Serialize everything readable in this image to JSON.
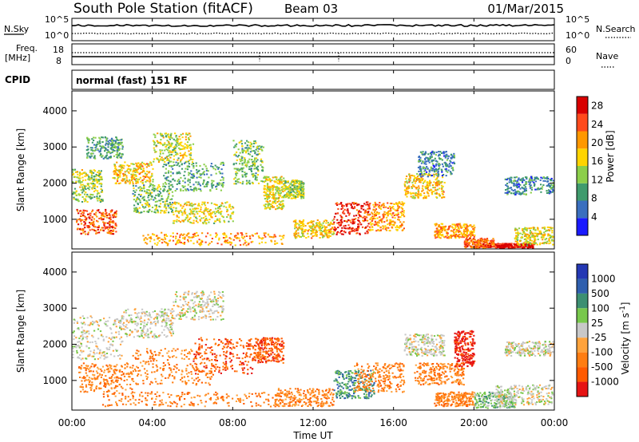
{
  "header": {
    "title": "South Pole Station (fitACF)",
    "beam": "Beam 03",
    "date": "01/Mar/2015"
  },
  "summary_panel": {
    "nsky_label": "N.Sky",
    "nsearch_label": "N.Search",
    "noise_ticks": [
      "10^5",
      "10^0"
    ],
    "freq_label_1": "Freq.",
    "freq_label_2": "[MHz]",
    "freq_ticks": [
      "18",
      "8"
    ],
    "nave_label": "Nave",
    "nave_ticks": [
      "60",
      "0"
    ],
    "cpid_label": "CPID",
    "cpid_text": "normal (fast) 151 RF"
  },
  "x_axis": {
    "label": "Time UT",
    "ticks": [
      "00:00",
      "04:00",
      "08:00",
      "12:00",
      "16:00",
      "20:00",
      "00:00"
    ]
  },
  "chart_data": [
    {
      "type": "heatmap",
      "name": "power",
      "ylabel": "Slant Range [km]",
      "yticks": [
        1000,
        2000,
        3000,
        4000
      ],
      "ylim": [
        180,
        4550
      ],
      "xlim_hours": [
        0,
        24
      ],
      "colorbar_label": "Power [dB]",
      "colorbar_ticks": [
        4,
        8,
        12,
        16,
        20,
        24,
        28
      ],
      "colorbar_range": [
        0,
        30
      ],
      "colors": [
        "#1a1aff",
        "#3a6fbf",
        "#3f9b6d",
        "#8ccf4a",
        "#ffd400",
        "#ff9800",
        "#ff4a1c",
        "#d80000"
      ],
      "regions": [
        {
          "t": [
            0.0,
            1.5
          ],
          "r": [
            1500,
            2400
          ],
          "v": 14
        },
        {
          "t": [
            0.7,
            2.5
          ],
          "r": [
            2700,
            3300
          ],
          "v": 10
        },
        {
          "t": [
            0.2,
            2.2
          ],
          "r": [
            600,
            1300
          ],
          "v": 24
        },
        {
          "t": [
            2.0,
            4.0
          ],
          "r": [
            2000,
            2600
          ],
          "v": 18
        },
        {
          "t": [
            3.0,
            5.0
          ],
          "r": [
            1200,
            2000
          ],
          "v": 12
        },
        {
          "t": [
            4.0,
            6.0
          ],
          "r": [
            2600,
            3400
          ],
          "v": 15
        },
        {
          "t": [
            4.5,
            7.5
          ],
          "r": [
            1800,
            2600
          ],
          "v": 10
        },
        {
          "t": [
            5.0,
            8.0
          ],
          "r": [
            900,
            1500
          ],
          "v": 16
        },
        {
          "t": [
            3.5,
            10.5
          ],
          "r": [
            300,
            650
          ],
          "v": 20
        },
        {
          "t": [
            8.0,
            9.5
          ],
          "r": [
            2000,
            3200
          ],
          "v": 12
        },
        {
          "t": [
            9.5,
            10.5
          ],
          "r": [
            1300,
            2200
          ],
          "v": 16
        },
        {
          "t": [
            10.5,
            11.5
          ],
          "r": [
            1600,
            2100
          ],
          "v": 14
        },
        {
          "t": [
            11.0,
            13.0
          ],
          "r": [
            500,
            1000
          ],
          "v": 18
        },
        {
          "t": [
            13.0,
            14.8
          ],
          "r": [
            600,
            1500
          ],
          "v": 26
        },
        {
          "t": [
            14.8,
            16.5
          ],
          "r": [
            700,
            1500
          ],
          "v": 20
        },
        {
          "t": [
            16.5,
            18.5
          ],
          "r": [
            1600,
            2300
          ],
          "v": 18
        },
        {
          "t": [
            17.2,
            19.0
          ],
          "r": [
            2200,
            2900
          ],
          "v": 8
        },
        {
          "t": [
            18.0,
            20.0
          ],
          "r": [
            500,
            900
          ],
          "v": 20
        },
        {
          "t": [
            19.5,
            21.0
          ],
          "r": [
            200,
            500
          ],
          "v": 24
        },
        {
          "t": [
            21.0,
            23.0
          ],
          "r": [
            200,
            350
          ],
          "v": 28
        },
        {
          "t": [
            21.5,
            24.0
          ],
          "r": [
            1700,
            2200
          ],
          "v": 8
        },
        {
          "t": [
            22.0,
            24.0
          ],
          "r": [
            300,
            800
          ],
          "v": 16
        }
      ]
    },
    {
      "type": "heatmap",
      "name": "velocity",
      "ylabel": "Slant Range [km]",
      "yticks": [
        1000,
        2000,
        3000,
        4000
      ],
      "ylim": [
        180,
        4550
      ],
      "xlim_hours": [
        0,
        24
      ],
      "colorbar_label": "Velocity [m s^-1]",
      "colorbar_ticks": [
        "1000",
        "500",
        "100",
        "25",
        "-25",
        "-100",
        "-500",
        "-1000"
      ],
      "colors": [
        "#2438b4",
        "#2f5fae",
        "#3c8f72",
        "#78c84c",
        "#c8c8c8",
        "#ffa33c",
        "#ff7d12",
        "#ff5a00",
        "#e61414"
      ],
      "regions": [
        {
          "t": [
            0.0,
            2.5
          ],
          "r": [
            1600,
            2800
          ],
          "v": 4
        },
        {
          "t": [
            2.5,
            5.0
          ],
          "r": [
            2200,
            3000
          ],
          "v": 4
        },
        {
          "t": [
            5.0,
            7.5
          ],
          "r": [
            2700,
            3500
          ],
          "v": 4
        },
        {
          "t": [
            0.3,
            3.0
          ],
          "r": [
            700,
            1500
          ],
          "v": 6
        },
        {
          "t": [
            3.0,
            7.0
          ],
          "r": [
            900,
            1900
          ],
          "v": 6
        },
        {
          "t": [
            6.0,
            9.0
          ],
          "r": [
            1200,
            2200
          ],
          "v": 7
        },
        {
          "t": [
            9.0,
            10.5
          ],
          "r": [
            1500,
            2200
          ],
          "v": 7
        },
        {
          "t": [
            1.5,
            11.0
          ],
          "r": [
            300,
            700
          ],
          "v": 6
        },
        {
          "t": [
            10.0,
            13.0
          ],
          "r": [
            300,
            800
          ],
          "v": 6
        },
        {
          "t": [
            13.0,
            15.0
          ],
          "r": [
            500,
            1300
          ],
          "v": 2
        },
        {
          "t": [
            14.0,
            16.5
          ],
          "r": [
            700,
            1500
          ],
          "v": 6
        },
        {
          "t": [
            16.5,
            18.5
          ],
          "r": [
            1700,
            2300
          ],
          "v": 4
        },
        {
          "t": [
            17.0,
            19.5
          ],
          "r": [
            900,
            1500
          ],
          "v": 6
        },
        {
          "t": [
            18.0,
            20.0
          ],
          "r": [
            300,
            700
          ],
          "v": 6
        },
        {
          "t": [
            19.0,
            20.0
          ],
          "r": [
            1400,
            2400
          ],
          "v": 8
        },
        {
          "t": [
            20.0,
            22.0
          ],
          "r": [
            250,
            700
          ],
          "v": 3
        },
        {
          "t": [
            21.0,
            24.0
          ],
          "r": [
            350,
            900
          ],
          "v": 4
        },
        {
          "t": [
            21.5,
            24.0
          ],
          "r": [
            1700,
            2100
          ],
          "v": 4
        }
      ]
    }
  ]
}
